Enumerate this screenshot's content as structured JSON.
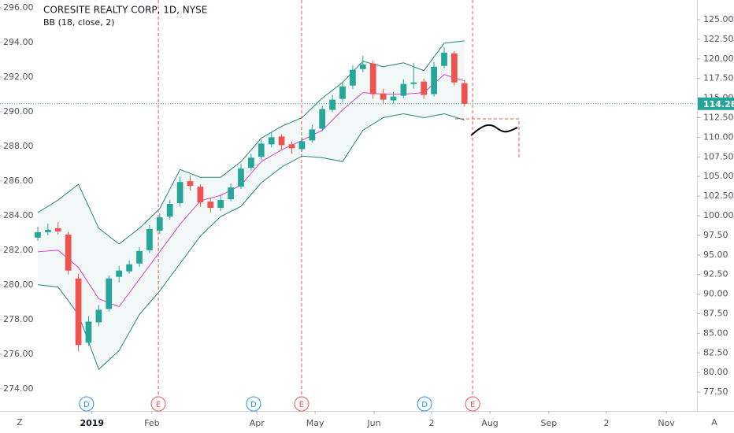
{
  "chart_data": {
    "type": "candlestick",
    "title": "CORESITE REALTY CORP, 1D, NYSE",
    "indicator": "BB (18, close, 2)",
    "x": [
      0,
      3,
      6,
      9,
      12,
      15,
      18,
      21,
      24,
      27,
      30,
      33,
      36,
      39,
      42,
      45,
      48,
      51,
      54,
      57,
      60,
      63,
      66,
      69,
      72,
      75,
      78,
      81,
      84,
      87,
      90,
      93,
      96,
      99,
      102,
      105,
      108,
      111,
      114,
      117,
      120,
      123,
      126
    ],
    "open": [
      97.2,
      97.9,
      98.4,
      97.6,
      92.0,
      83.8,
      86.4,
      88.1,
      92.2,
      92.9,
      93.9,
      95.6,
      98.1,
      99.9,
      101.6,
      104.4,
      103.7,
      101.8,
      101.0,
      102.1,
      103.7,
      106.1,
      107.5,
      109.1,
      110.1,
      109.1,
      108.5,
      109.6,
      111.1,
      113.5,
      114.9,
      116.6,
      118.7,
      119.4,
      115.6,
      114.7,
      115.3,
      116.8,
      117.1,
      115.5,
      119.1,
      120.7,
      116.9
    ],
    "high": [
      98.6,
      99.0,
      99.2,
      97.9,
      92.6,
      87.2,
      88.6,
      92.4,
      93.6,
      94.3,
      96.0,
      98.8,
      100.3,
      102.0,
      105.0,
      105.1,
      104.0,
      102.3,
      102.6,
      104.1,
      106.6,
      107.9,
      109.7,
      110.6,
      110.4,
      109.5,
      110.0,
      111.6,
      114.0,
      115.4,
      117.0,
      119.2,
      120.4,
      119.8,
      116.2,
      115.8,
      117.4,
      119.5,
      117.5,
      119.6,
      121.5,
      121.0,
      117.3
    ],
    "low": [
      96.8,
      97.5,
      97.6,
      92.5,
      82.7,
      83.4,
      85.9,
      87.8,
      91.5,
      92.6,
      93.5,
      95.2,
      97.7,
      99.5,
      101.2,
      103.2,
      101.1,
      100.4,
      100.6,
      101.8,
      103.4,
      105.7,
      107.1,
      108.7,
      108.5,
      107.9,
      108.2,
      109.3,
      110.8,
      113.2,
      114.5,
      116.2,
      118.3,
      114.9,
      114.2,
      114.3,
      115.0,
      116.2,
      114.9,
      115.2,
      118.8,
      116.6,
      113.9
    ],
    "close": [
      97.9,
      98.2,
      98.0,
      93.0,
      83.5,
      86.5,
      88.0,
      92.0,
      93.0,
      93.8,
      95.5,
      98.3,
      99.8,
      101.5,
      104.3,
      103.8,
      101.7,
      101.0,
      102.0,
      103.6,
      106.0,
      107.4,
      109.2,
      110.0,
      109.0,
      108.6,
      109.5,
      111.0,
      113.6,
      114.8,
      116.5,
      118.6,
      119.3,
      115.5,
      114.8,
      115.2,
      116.8,
      117.0,
      115.4,
      119.0,
      120.8,
      117.0,
      114.28
    ],
    "up_color": "#26a69a",
    "down_color": "#ef5350",
    "bb_x": [
      0,
      6,
      12,
      18,
      24,
      30,
      36,
      42,
      48,
      54,
      60,
      66,
      72,
      78,
      84,
      90,
      96,
      102,
      108,
      114,
      120,
      126
    ],
    "bb_upper": [
      100.4,
      102.0,
      104.0,
      98.4,
      96.4,
      98.4,
      100.9,
      105.9,
      104.9,
      104.9,
      106.9,
      109.9,
      111.4,
      112.5,
      115.0,
      117.0,
      119.7,
      119.0,
      119.5,
      118.5,
      122.0,
      122.3
    ],
    "bb_middle": [
      95.4,
      95.6,
      93.4,
      89.4,
      88.4,
      91.9,
      95.4,
      98.9,
      101.9,
      102.6,
      103.9,
      106.9,
      108.4,
      109.6,
      110.9,
      113.5,
      115.7,
      115.5,
      115.5,
      115.7,
      118.0,
      117.2
    ],
    "bb_lower": [
      91.2,
      90.9,
      87.4,
      80.4,
      82.8,
      87.4,
      90.4,
      93.9,
      97.4,
      99.9,
      101.2,
      104.2,
      106.2,
      107.6,
      107.4,
      106.9,
      110.9,
      112.5,
      113.0,
      112.5,
      113.0,
      112.2
    ],
    "band_color": "#26857a",
    "basis_color": "#e040d0",
    "last_price": 114.28,
    "events": [
      {
        "label": "D",
        "x": 14.4
      },
      {
        "label": "E",
        "x": 35.6
      },
      {
        "label": "D",
        "x": 63.7
      },
      {
        "label": "E",
        "x": 77.9
      },
      {
        "label": "D",
        "x": 114.2
      },
      {
        "label": "E",
        "x": 128.4
      }
    ],
    "xlim": [
      -11.16,
      194.65
    ],
    "xticks": [
      {
        "value": 16,
        "label": "2019"
      },
      {
        "value": 33.7,
        "label": "Feb"
      },
      {
        "value": 64.7,
        "label": "Apr"
      },
      {
        "value": 81.9,
        "label": "May"
      },
      {
        "value": 99.3,
        "label": "Jun"
      },
      {
        "value": 116.3,
        "label": "2"
      },
      {
        "value": 133.5,
        "label": "Aug"
      },
      {
        "value": 150.9,
        "label": "Sep"
      },
      {
        "value": 167.9,
        "label": "2"
      },
      {
        "value": 185.6,
        "label": "Nov"
      }
    ],
    "ylim": [
      75.1,
      127.51
    ],
    "yticks": [
      {
        "value": 77.5,
        "label": "77.50"
      },
      {
        "value": 80,
        "label": "80.00"
      },
      {
        "value": 82.5,
        "label": "82.50"
      },
      {
        "value": 85,
        "label": "85.00"
      },
      {
        "value": 87.5,
        "label": "87.50"
      },
      {
        "value": 90,
        "label": "90.00"
      },
      {
        "value": 92.5,
        "label": "92.50"
      },
      {
        "value": 95,
        "label": "95.00"
      },
      {
        "value": 97.5,
        "label": "97.50"
      },
      {
        "value": 100,
        "label": "100.00"
      },
      {
        "value": 102.5,
        "label": "102.50"
      },
      {
        "value": 105,
        "label": "105.00"
      },
      {
        "value": 107.5,
        "label": "107.50"
      },
      {
        "value": 110,
        "label": "110.00"
      },
      {
        "value": 112.5,
        "label": "112.50"
      },
      {
        "value": 115,
        "label": "115.00"
      },
      {
        "value": 117.5,
        "label": "117.50"
      },
      {
        "value": 120,
        "label": "120.00"
      },
      {
        "value": 122.5,
        "label": "122.50"
      },
      {
        "value": 125,
        "label": "125.00"
      }
    ],
    "y2lim": [
      272.73,
      296.45
    ],
    "y2ticks": [
      {
        "value": 274,
        "label": "274.00"
      },
      {
        "value": 276,
        "label": "276.00"
      },
      {
        "value": 278,
        "label": "278.00"
      },
      {
        "value": 280,
        "label": "280.00"
      },
      {
        "value": 282,
        "label": "282.00"
      },
      {
        "value": 284,
        "label": "284.00"
      },
      {
        "value": 286,
        "label": "286.00"
      },
      {
        "value": 288,
        "label": "288.00"
      },
      {
        "value": 290,
        "label": "290.00"
      },
      {
        "value": 292,
        "label": "292.00"
      },
      {
        "value": 294,
        "label": "294.00"
      },
      {
        "value": 296,
        "label": "296.00"
      }
    ],
    "corner_left": "Z",
    "corner_right": "A"
  }
}
